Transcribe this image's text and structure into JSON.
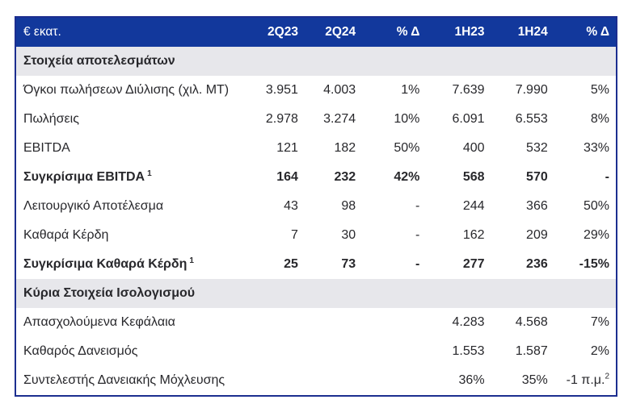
{
  "table": {
    "unit_label": "€ εκατ.",
    "columns": [
      "2Q23",
      "2Q24",
      "% Δ",
      "1H23",
      "1H24",
      "% Δ"
    ],
    "sections": [
      {
        "title": "Στοιχεία αποτελεσμάτων",
        "rows": [
          {
            "label": "Όγκοι πωλήσεων Διύλισης (χιλ. ΜΤ)",
            "values": [
              "3.951",
              "4.003",
              "1%",
              "7.639",
              "7.990",
              "5%"
            ]
          },
          {
            "label": "Πωλήσεις",
            "values": [
              "2.978",
              "3.274",
              "10%",
              "6.091",
              "6.553",
              "8%"
            ]
          },
          {
            "label": "EBITDA",
            "values": [
              "121",
              "182",
              "50%",
              "400",
              "532",
              "33%"
            ]
          },
          {
            "label": "Συγκρίσιμα EBITDA",
            "sup": "1",
            "bold": true,
            "values": [
              "164",
              "232",
              "42%",
              "568",
              "570",
              "-"
            ]
          },
          {
            "label": "Λειτουργικό Αποτέλεσμα",
            "values": [
              "43",
              "98",
              "-",
              "244",
              "366",
              "50%"
            ]
          },
          {
            "label": "Καθαρά Κέρδη",
            "values": [
              "7",
              "30",
              "-",
              "162",
              "209",
              "29%"
            ]
          },
          {
            "label": "Συγκρίσιμα Καθαρά Κέρδη",
            "sup": "1",
            "bold": true,
            "values": [
              "25",
              "73",
              "-",
              "277",
              "236",
              "-15%"
            ]
          }
        ]
      },
      {
        "title": "Κύρια Στοιχεία Ισολογισμού",
        "rows": [
          {
            "label": "Απασχολούμενα Κεφάλαια",
            "values": [
              "",
              "",
              "",
              "4.283",
              "4.568",
              "7%"
            ]
          },
          {
            "label": "Καθαρός Δανεισμός",
            "values": [
              "",
              "",
              "",
              "1.553",
              "1.587",
              "2%"
            ]
          },
          {
            "label": "Συντελεστής Δανειακής Μόχλευσης",
            "values": [
              "",
              "",
              "",
              "36%",
              "35%",
              "-1 π.μ."
            ],
            "last_sup": "2"
          }
        ]
      }
    ],
    "colors": {
      "header_bg": "#12389C",
      "header_text": "#FFFFFF",
      "section_bg": "#E7E7EB",
      "border": "#1C2E90",
      "text": "#28282C"
    }
  }
}
